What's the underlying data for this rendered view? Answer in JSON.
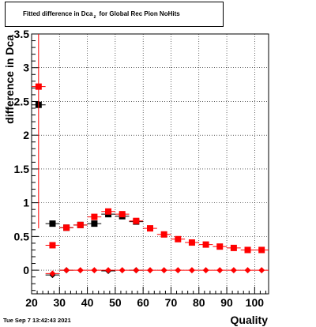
{
  "title": {
    "main": "Fitted difference in Dca",
    "subscript": "z",
    "rest": "for Global Rec Pion NoHits"
  },
  "timestamp": "Tue Sep  7 13:42:43 2021",
  "chart_data": {
    "type": "scatter",
    "xlabel": "Quality",
    "ylabel": "difference in Dca",
    "xlim": [
      20,
      105
    ],
    "ylim": [
      -0.35,
      3.5
    ],
    "xticks": [
      20,
      30,
      40,
      50,
      60,
      70,
      80,
      90,
      100
    ],
    "yticks": [
      0,
      0.5,
      1,
      1.5,
      2,
      2.5,
      3,
      3.5
    ],
    "ytick_labels": [
      "0",
      "0.5",
      "1",
      "1.5",
      "2",
      "2.5",
      "3",
      "3.5"
    ],
    "grid": true,
    "series": [
      {
        "marker": "square",
        "color": "#000000",
        "x": [
          22.5,
          27.5,
          32.5,
          37.5,
          42.5,
          47.5,
          52.5,
          57.5
        ],
        "y": [
          2.45,
          0.69,
          0.63,
          0.67,
          0.69,
          0.83,
          0.8,
          0.72
        ],
        "yerr": [
          0,
          0,
          0,
          0,
          0,
          0,
          0,
          0
        ]
      },
      {
        "marker": "square",
        "color": "#ff0000",
        "x": [
          22.5,
          27.5,
          32.5,
          37.5,
          42.5,
          47.5,
          52.5,
          57.5,
          62.5,
          67.5,
          72.5,
          77.5,
          82.5,
          87.5,
          92.5,
          97.5,
          102.5
        ],
        "y": [
          2.72,
          0.37,
          0.63,
          0.67,
          0.79,
          0.87,
          0.83,
          0.73,
          0.62,
          0.53,
          0.46,
          0.41,
          0.38,
          0.35,
          0.33,
          0.3,
          0.3
        ],
        "yerr": [
          2.1,
          0,
          0,
          0,
          0,
          0,
          0,
          0,
          0,
          0,
          0,
          0,
          0,
          0,
          0,
          0,
          0
        ]
      },
      {
        "marker": "diamond",
        "color": "#000000",
        "x": [
          27.5,
          32.5,
          47.5,
          57.5
        ],
        "y": [
          -0.07,
          0.0,
          -0.01,
          0.0
        ],
        "yerr": [
          0,
          0,
          0,
          0
        ]
      },
      {
        "marker": "diamond",
        "color": "#ff0000",
        "x": [
          27.5,
          32.5,
          37.5,
          42.5,
          47.5,
          52.5,
          57.5,
          62.5,
          67.5,
          72.5,
          77.5,
          82.5,
          87.5,
          92.5,
          97.5,
          102.5
        ],
        "y": [
          -0.05,
          0.0,
          0.0,
          0.0,
          0.0,
          0.0,
          0.0,
          0.0,
          0.0,
          0.0,
          0.0,
          0.0,
          0.0,
          0.0,
          0.0,
          0.0
        ],
        "yerr": [
          0,
          0,
          0,
          0,
          0,
          0,
          0,
          0,
          0,
          0,
          0,
          0,
          0,
          0,
          0,
          0
        ]
      }
    ]
  }
}
